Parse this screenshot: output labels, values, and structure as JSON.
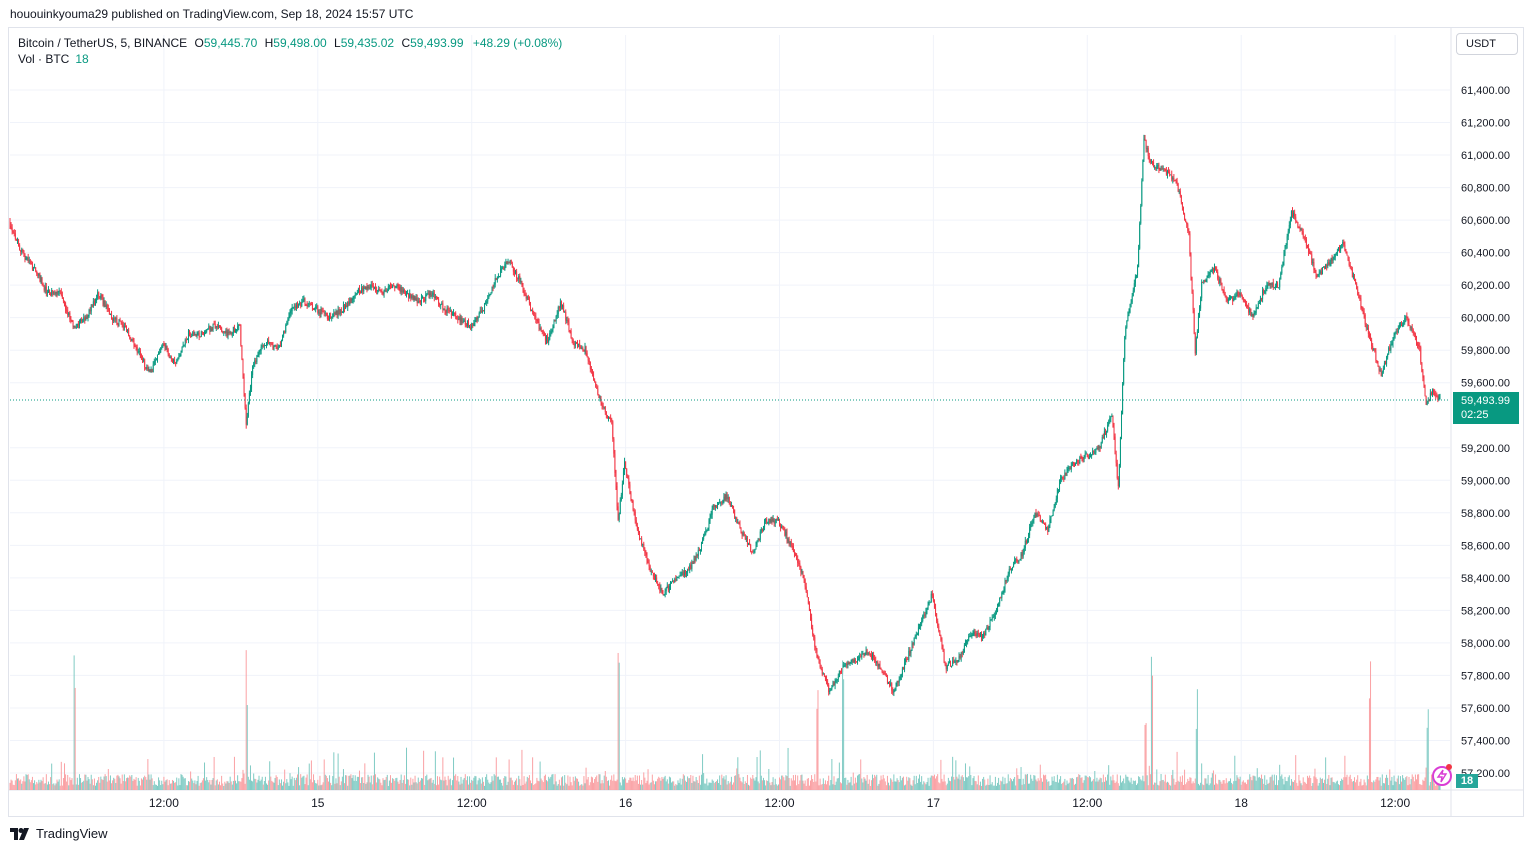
{
  "header": {
    "published_by": "hououinkyouma29 published on TradingView.com, Sep 18, 2024 15:57 UTC"
  },
  "legend": {
    "symbol": "Bitcoin / TetherUS, 5, BINANCE",
    "open_label": "O",
    "open": "59,445.70",
    "high_label": "H",
    "high": "59,498.00",
    "low_label": "L",
    "low": "59,435.02",
    "close_label": "C",
    "close": "59,493.99",
    "change": "+48.29 (+0.08%)",
    "vol_label": "Vol · BTC",
    "vol_value": "18"
  },
  "currency_button": "USDT",
  "last_price": {
    "value": "59,493.99",
    "countdown": "02:25"
  },
  "volume_badge": "18",
  "footer": {
    "brand": "TradingView"
  },
  "colors": {
    "up": "#089981",
    "down": "#f23645",
    "up_vol": "#80cbc4",
    "down_vol": "#faa1a4",
    "grid": "#f0f3fa",
    "text": "#131722"
  },
  "chart_data": {
    "type": "candlestick",
    "interval": "5",
    "exchange": "BINANCE",
    "y_ticks": [
      "61,400.00",
      "61,200.00",
      "61,000.00",
      "60,800.00",
      "60,600.00",
      "60,400.00",
      "60,200.00",
      "60,000.00",
      "59,800.00",
      "59,600.00",
      "59,200.00",
      "59,000.00",
      "58,800.00",
      "58,600.00",
      "58,400.00",
      "58,200.00",
      "58,000.00",
      "57,800.00",
      "57,600.00",
      "57,400.00",
      "57,200.00"
    ],
    "y_tick_values": [
      61400,
      61200,
      61000,
      60800,
      60600,
      60400,
      60200,
      60000,
      59800,
      59600,
      59200,
      59000,
      58800,
      58600,
      58400,
      58200,
      58000,
      57800,
      57600,
      57400,
      57200
    ],
    "x_ticks": [
      "12:00",
      "15",
      "12:00",
      "16",
      "12:00",
      "17",
      "12:00",
      "18",
      "12:00"
    ],
    "x_tick_hours": [
      12,
      24,
      36,
      48,
      60,
      72,
      84,
      96,
      108
    ],
    "time_range_hours": [
      0,
      111.5
    ],
    "last_price": 59493.99,
    "price_path": [
      [
        0,
        60600
      ],
      [
        1,
        60400
      ],
      [
        2,
        60300
      ],
      [
        3,
        60150
      ],
      [
        4,
        60150
      ],
      [
        5,
        59950
      ],
      [
        6,
        60000
      ],
      [
        7,
        60150
      ],
      [
        8,
        60000
      ],
      [
        9,
        59950
      ],
      [
        10,
        59800
      ],
      [
        11,
        59650
      ],
      [
        12,
        59850
      ],
      [
        13,
        59700
      ],
      [
        14,
        59900
      ],
      [
        15,
        59900
      ],
      [
        16,
        59950
      ],
      [
        17,
        59900
      ],
      [
        18,
        59950
      ],
      [
        18.5,
        59350
      ],
      [
        19,
        59700
      ],
      [
        20,
        59850
      ],
      [
        21,
        59800
      ],
      [
        22,
        60050
      ],
      [
        23,
        60100
      ],
      [
        24,
        60050
      ],
      [
        25,
        60000
      ],
      [
        26,
        60050
      ],
      [
        27,
        60150
      ],
      [
        28,
        60200
      ],
      [
        29,
        60150
      ],
      [
        30,
        60200
      ],
      [
        31,
        60150
      ],
      [
        32,
        60100
      ],
      [
        33,
        60150
      ],
      [
        34,
        60050
      ],
      [
        35,
        60000
      ],
      [
        36,
        59950
      ],
      [
        37,
        60050
      ],
      [
        38,
        60250
      ],
      [
        39,
        60350
      ],
      [
        40,
        60200
      ],
      [
        41,
        60000
      ],
      [
        42,
        59850
      ],
      [
        43,
        60100
      ],
      [
        44,
        59850
      ],
      [
        45,
        59800
      ],
      [
        46,
        59500
      ],
      [
        47,
        59350
      ],
      [
        47.5,
        58750
      ],
      [
        48,
        59100
      ],
      [
        49,
        58700
      ],
      [
        50,
        58450
      ],
      [
        51,
        58300
      ],
      [
        52,
        58400
      ],
      [
        53,
        58450
      ],
      [
        54,
        58600
      ],
      [
        55,
        58850
      ],
      [
        56,
        58900
      ],
      [
        57,
        58700
      ],
      [
        58,
        58550
      ],
      [
        59,
        58750
      ],
      [
        60,
        58750
      ],
      [
        61,
        58600
      ],
      [
        62,
        58400
      ],
      [
        63,
        57900
      ],
      [
        64,
        57700
      ],
      [
        65,
        57850
      ],
      [
        66,
        57900
      ],
      [
        67,
        57950
      ],
      [
        68,
        57850
      ],
      [
        69,
        57700
      ],
      [
        70,
        57900
      ],
      [
        71,
        58100
      ],
      [
        72,
        58300
      ],
      [
        73,
        57850
      ],
      [
        74,
        57900
      ],
      [
        75,
        58050
      ],
      [
        76,
        58050
      ],
      [
        77,
        58200
      ],
      [
        78,
        58450
      ],
      [
        79,
        58550
      ],
      [
        80,
        58800
      ],
      [
        81,
        58700
      ],
      [
        82,
        59000
      ],
      [
        83,
        59100
      ],
      [
        84,
        59150
      ],
      [
        85,
        59200
      ],
      [
        86,
        59400
      ],
      [
        86.5,
        58950
      ],
      [
        87,
        59900
      ],
      [
        88,
        60300
      ],
      [
        88.5,
        61100
      ],
      [
        89,
        60950
      ],
      [
        90,
        60900
      ],
      [
        91,
        60850
      ],
      [
        92,
        60500
      ],
      [
        92.5,
        59800
      ],
      [
        93,
        60200
      ],
      [
        94,
        60300
      ],
      [
        95,
        60100
      ],
      [
        96,
        60150
      ],
      [
        97,
        60000
      ],
      [
        98,
        60200
      ],
      [
        99,
        60200
      ],
      [
        100,
        60650
      ],
      [
        101,
        60500
      ],
      [
        102,
        60250
      ],
      [
        103,
        60350
      ],
      [
        104,
        60450
      ],
      [
        105,
        60200
      ],
      [
        106,
        59900
      ],
      [
        107,
        59650
      ],
      [
        108,
        59900
      ],
      [
        109,
        60000
      ],
      [
        110,
        59800
      ],
      [
        110.5,
        59450
      ],
      [
        111,
        59550
      ],
      [
        111.5,
        59494
      ]
    ],
    "volume_spike_hours": [
      5,
      18.5,
      47.5,
      63,
      65,
      88.5,
      89,
      92.5,
      106,
      110.5
    ],
    "ylim": [
      57100,
      61500
    ]
  }
}
